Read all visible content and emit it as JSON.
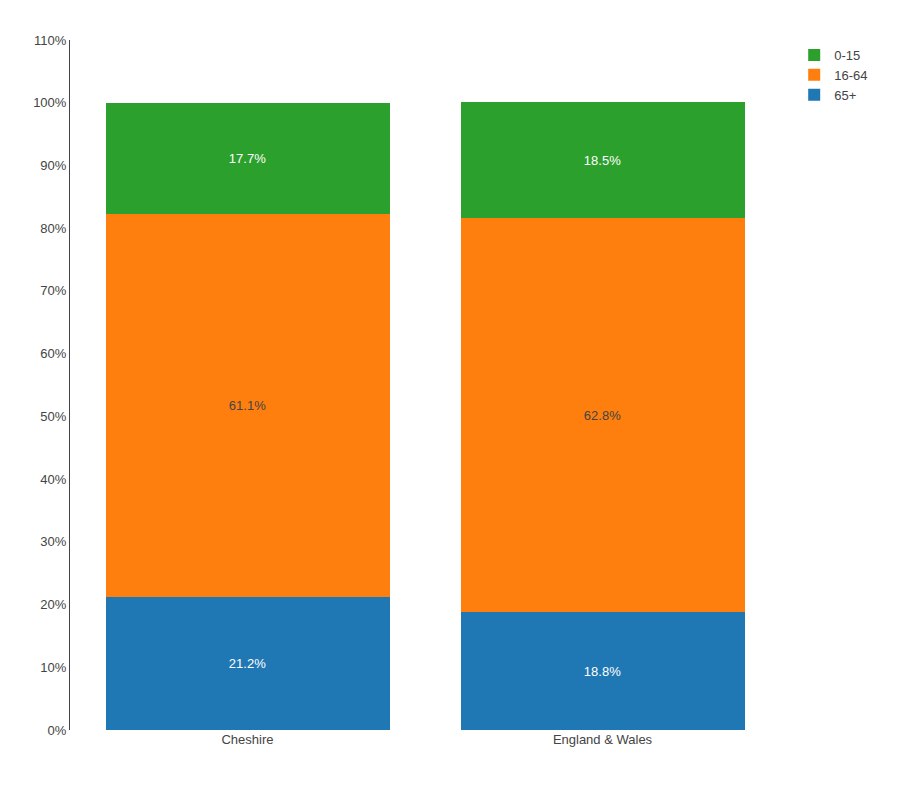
{
  "chart_data": {
    "type": "bar",
    "stacked": true,
    "categories": [
      "Cheshire",
      "England & Wales"
    ],
    "series": [
      {
        "name": "65+",
        "values": [
          21.2,
          18.8
        ],
        "value_labels": [
          "21.2%",
          "18.8%"
        ]
      },
      {
        "name": "16-64",
        "values": [
          61.1,
          62.8
        ],
        "value_labels": [
          "61.1%",
          "62.8%"
        ]
      },
      {
        "name": "0-15",
        "values": [
          17.7,
          18.5
        ],
        "value_labels": [
          "17.7%",
          "18.5%"
        ]
      }
    ],
    "ylim": [
      0,
      110
    ],
    "yticks": [
      {
        "value": 0,
        "label": "0%"
      },
      {
        "value": 10,
        "label": "10%"
      },
      {
        "value": 20,
        "label": "20%"
      },
      {
        "value": 30,
        "label": "30%"
      },
      {
        "value": 40,
        "label": "40%"
      },
      {
        "value": 50,
        "label": "50%"
      },
      {
        "value": 60,
        "label": "60%"
      },
      {
        "value": 70,
        "label": "70%"
      },
      {
        "value": 80,
        "label": "80%"
      },
      {
        "value": 90,
        "label": "90%"
      },
      {
        "value": 100,
        "label": "100%"
      },
      {
        "value": 110,
        "label": "110%"
      }
    ],
    "grid": false,
    "legend": "right",
    "data_labels": true
  }
}
